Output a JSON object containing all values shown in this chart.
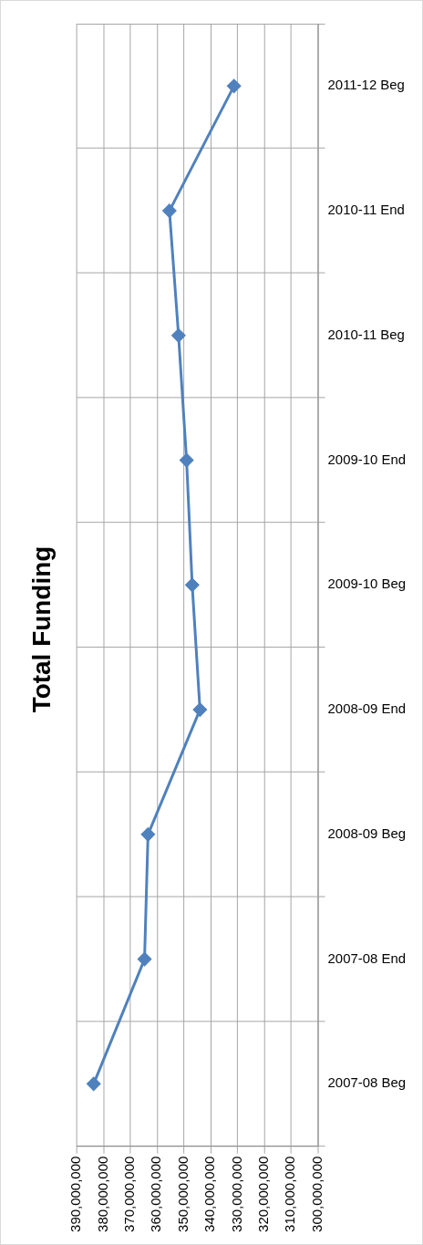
{
  "chart_data": {
    "type": "line",
    "title": "Total Funding",
    "orientation": "horizontal",
    "categories": [
      "2011-12 Beg",
      "2010-11 End",
      "2010-11 Beg",
      "2009-10 End",
      "2009-10 Beg",
      "2008-09 End",
      "2008-09 Beg",
      "2007-08 End",
      "2007-08 Beg"
    ],
    "series": [
      {
        "color": "#4f81bd",
        "values": [
          331300000,
          355400000,
          352000000,
          349000000,
          346900000,
          344000000,
          363400000,
          364700000,
          383700000
        ]
      }
    ],
    "xlim": [
      390000000,
      300000000
    ],
    "xticks": [
      {
        "value": 390000000,
        "label": "390,000,000"
      },
      {
        "value": 380000000,
        "label": "380,000,000"
      },
      {
        "value": 370000000,
        "label": "370,000,000"
      },
      {
        "value": 360000000,
        "label": "360,000,000"
      },
      {
        "value": 350000000,
        "label": "350,000,000"
      },
      {
        "value": 340000000,
        "label": "340,000,000"
      },
      {
        "value": 330000000,
        "label": "330,000,000"
      },
      {
        "value": 320000000,
        "label": "320,000,000"
      },
      {
        "value": 310000000,
        "label": "310,000,000"
      },
      {
        "value": 300000000,
        "label": "300,000,000"
      }
    ],
    "grid": true,
    "marker": "diamond",
    "line_style": "solid"
  }
}
